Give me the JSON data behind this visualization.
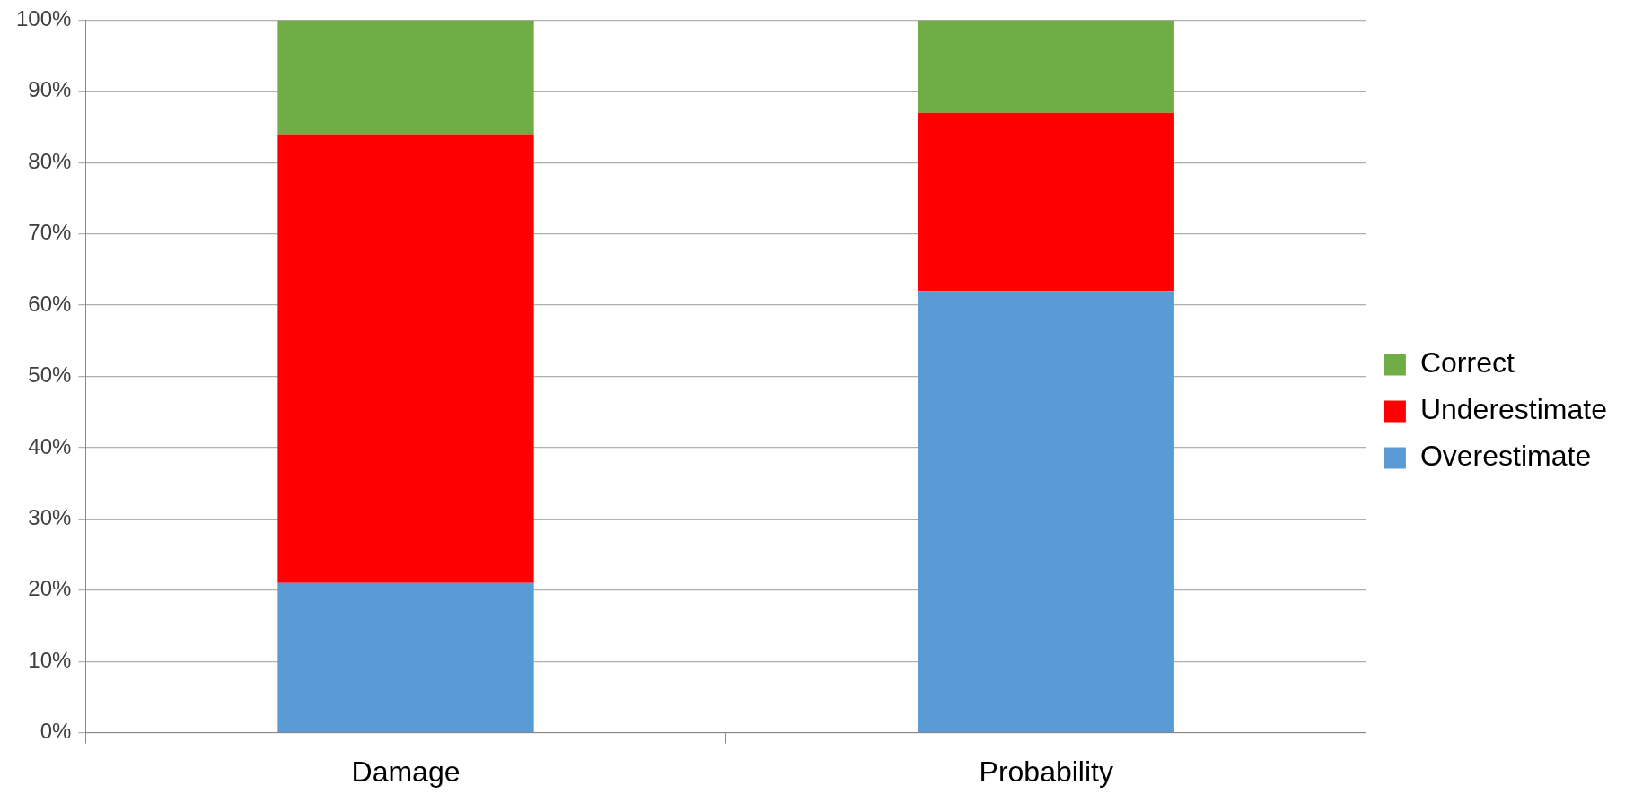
{
  "chart_data": {
    "type": "bar",
    "stacked": true,
    "categories": [
      "Damage",
      "Probability"
    ],
    "series": [
      {
        "name": "Overestimate",
        "color": "#5b9bd5",
        "values": [
          21,
          62
        ]
      },
      {
        "name": "Underestimate",
        "color": "#ff0000",
        "values": [
          63,
          25
        ]
      },
      {
        "name": "Correct",
        "color": "#70ad47",
        "values": [
          16,
          13
        ]
      }
    ],
    "ylim": [
      0,
      100
    ],
    "yticks": [
      {
        "value": 0,
        "label": "0%"
      },
      {
        "value": 10,
        "label": "10%"
      },
      {
        "value": 20,
        "label": "20%"
      },
      {
        "value": 30,
        "label": "30%"
      },
      {
        "value": 40,
        "label": "40%"
      },
      {
        "value": 50,
        "label": "50%"
      },
      {
        "value": 60,
        "label": "60%"
      },
      {
        "value": 70,
        "label": "70%"
      },
      {
        "value": 80,
        "label": "80%"
      },
      {
        "value": 90,
        "label": "90%"
      },
      {
        "value": 100,
        "label": "100%"
      }
    ],
    "grid": "y",
    "legend": "right"
  }
}
